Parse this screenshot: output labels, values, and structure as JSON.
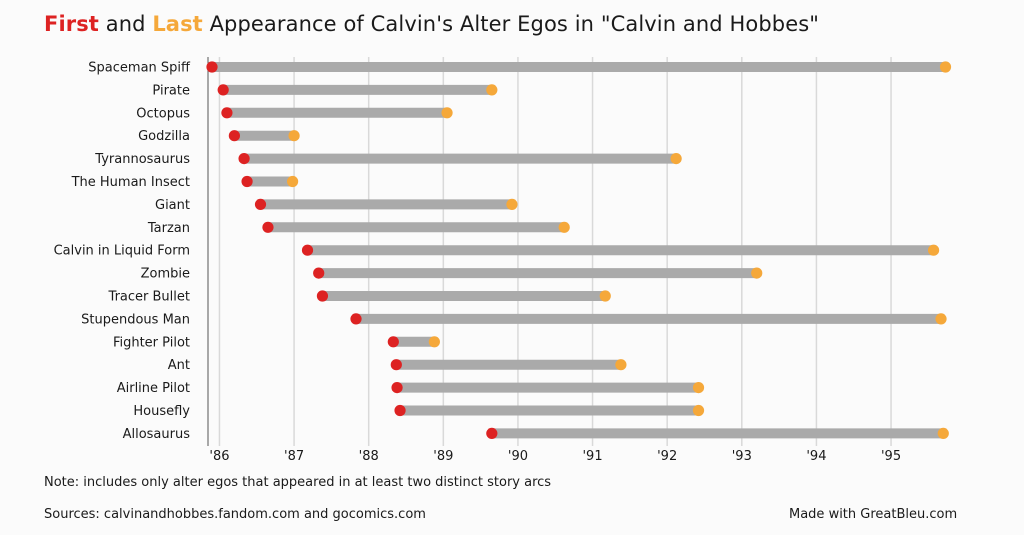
{
  "title": {
    "first": "First",
    "and": " and ",
    "last": "Last",
    "rest": " Appearance of Calvin's Alter Egos in \"Calvin and Hobbes\""
  },
  "note": "Note: includes only alter egos that appeared in at least two distinct story arcs",
  "sources": "Sources: calvinandhobbes.fandom.com and gocomics.com",
  "credit": "Made with GreatBleu.com",
  "colors": {
    "first": "#dd2222",
    "last": "#f5a83a",
    "bar": "#aaaaaa",
    "grid": "#d9d9d9"
  },
  "chart_data": {
    "type": "bar",
    "orientation": "horizontal-range",
    "title": "First and Last Appearance of Calvin's Alter Egos in \"Calvin and Hobbes\"",
    "xlabel": "",
    "ylabel": "",
    "xlim": [
      1985.9,
      1995.75
    ],
    "x_ticks": [
      1986,
      1987,
      1988,
      1989,
      1990,
      1991,
      1992,
      1993,
      1994,
      1995
    ],
    "x_tick_labels": [
      "'86",
      "'87",
      "'88",
      "'89",
      "'90",
      "'91",
      "'92",
      "'93",
      "'94",
      "'95"
    ],
    "grid": true,
    "categories": [
      "Spaceman Spiff",
      "Pirate",
      "Octopus",
      "Godzilla",
      "Tyrannosaurus",
      "The Human Insect",
      "Giant",
      "Tarzan",
      "Calvin in Liquid Form",
      "Zombie",
      "Tracer Bullet",
      "Stupendous Man",
      "Fighter Pilot",
      "Ant",
      "Airline Pilot",
      "Housefly",
      "Allosaurus"
    ],
    "first": [
      1985.9,
      1986.05,
      1986.1,
      1986.2,
      1986.33,
      1986.37,
      1986.55,
      1986.65,
      1987.18,
      1987.33,
      1987.38,
      1987.83,
      1988.33,
      1988.37,
      1988.38,
      1988.42,
      1989.65
    ],
    "last": [
      1995.73,
      1989.65,
      1989.05,
      1987.0,
      1992.12,
      1986.98,
      1989.92,
      1990.62,
      1995.57,
      1993.2,
      1991.17,
      1995.67,
      1988.88,
      1991.38,
      1992.42,
      1992.42,
      1995.7
    ],
    "legend": [
      {
        "name": "First",
        "color": "#dd2222"
      },
      {
        "name": "Last",
        "color": "#f5a83a"
      }
    ]
  }
}
